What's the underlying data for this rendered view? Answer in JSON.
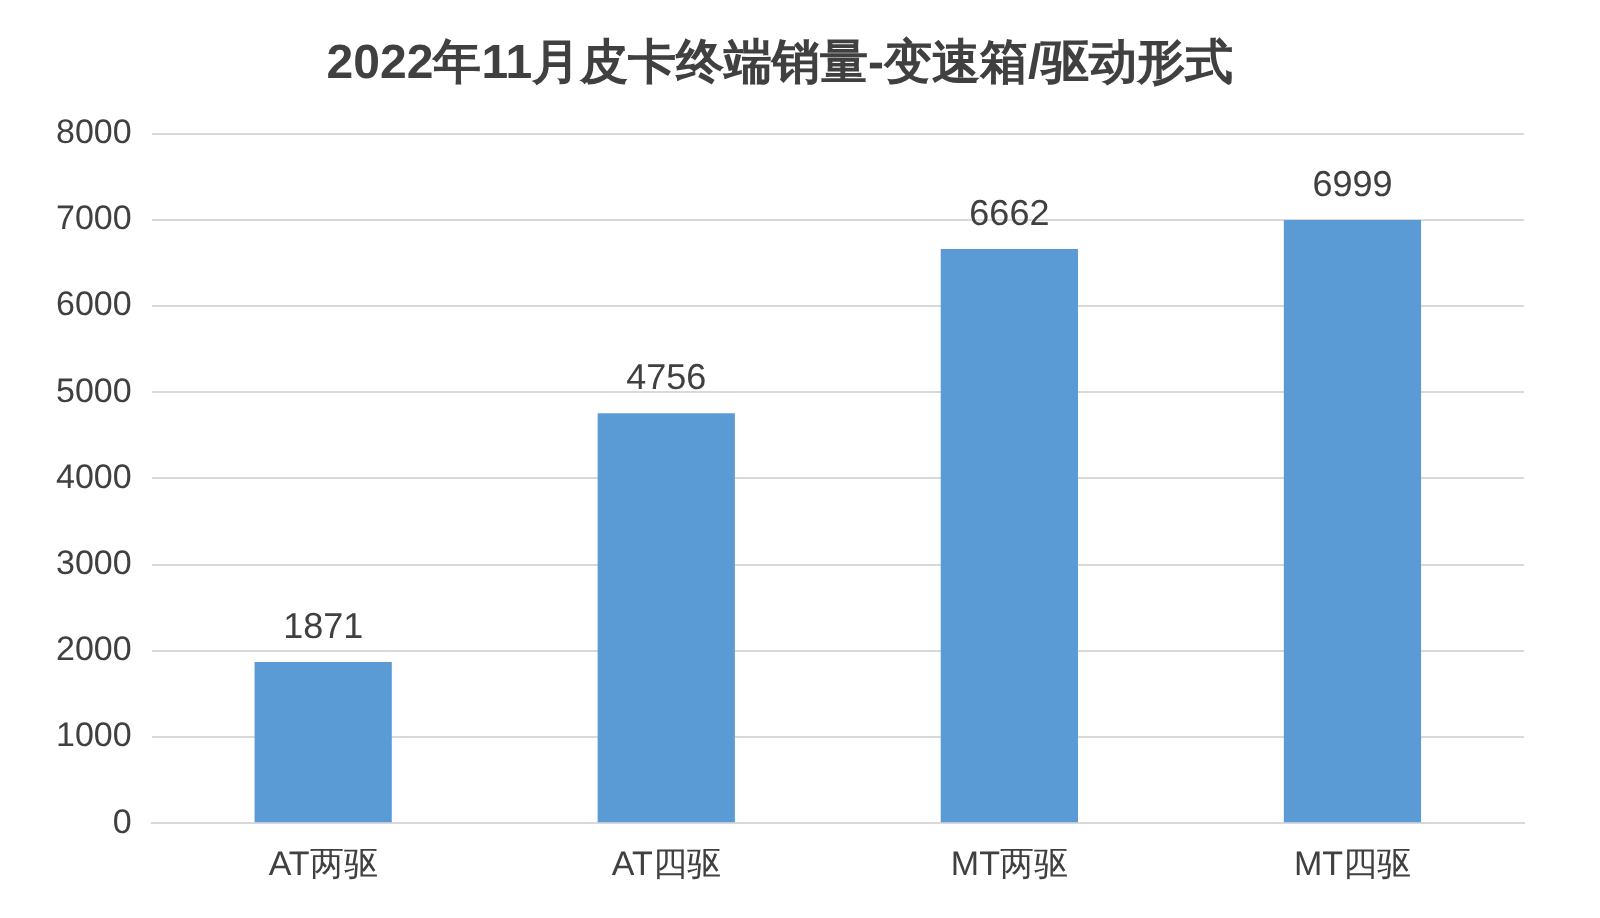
{
  "chart_data": {
    "type": "bar",
    "title": "2022年11月皮卡终端销量-变速箱/驱动形式",
    "categories": [
      "AT两驱",
      "AT四驱",
      "MT两驱",
      "MT四驱"
    ],
    "values": [
      1871,
      4756,
      6662,
      6999
    ],
    "color": "#5b9bd5",
    "ylim": [
      0,
      8000
    ],
    "yticks": [
      0,
      1000,
      2000,
      3000,
      4000,
      5000,
      6000,
      7000,
      8000
    ],
    "grid": "y",
    "data_labels": true,
    "legend": false
  }
}
